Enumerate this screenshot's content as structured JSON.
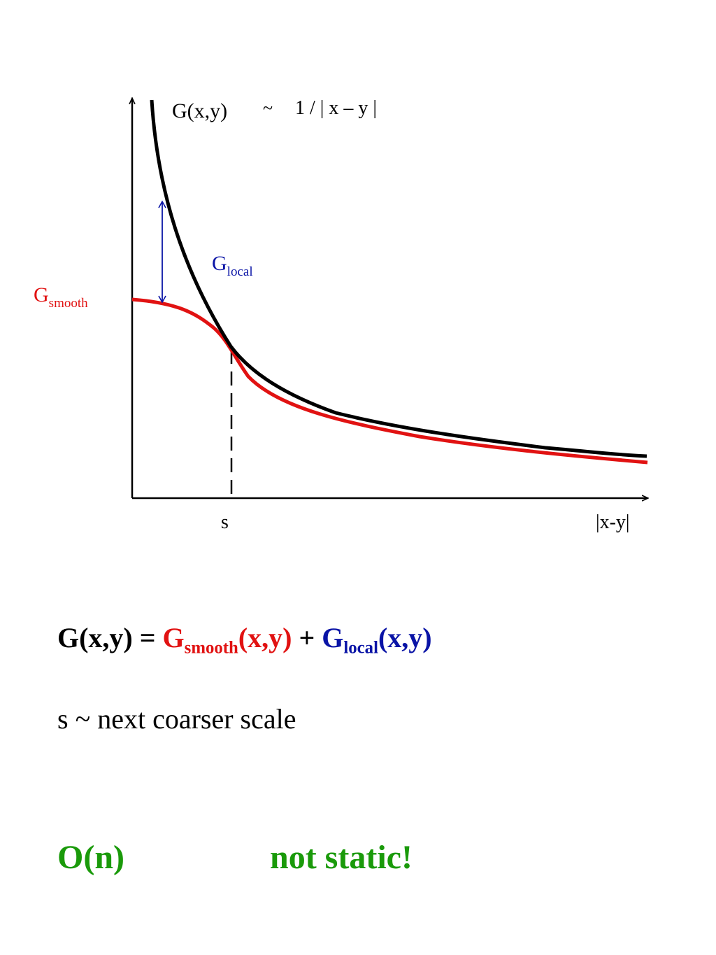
{
  "colors": {
    "axis": "#000000",
    "g_curve": "#000000",
    "g_smooth": "#e11212",
    "g_local": "#0a14a6",
    "highlight": "#1a9a0a"
  },
  "diagram": {
    "curve_formula": {
      "g": "G(x,y)",
      "tilde": "~",
      "rhs": "1 / | x – y |"
    },
    "g_local_label": {
      "base": "G",
      "sub": "local"
    },
    "g_smooth_label": {
      "base": "G",
      "sub": "smooth"
    },
    "s_tick": "s",
    "x_axis_label": "|x-y|"
  },
  "equation": {
    "lhs": "G(x,y) =",
    "smooth_base": "G",
    "smooth_sub": "smooth",
    "smooth_args": "(x,y)",
    "plus": "+",
    "local_base": "G",
    "local_sub": "local",
    "local_args": "(x,y)"
  },
  "scale_note": "s ~  next coarser scale",
  "complexity": "O(n)",
  "not_static": "not static!"
}
